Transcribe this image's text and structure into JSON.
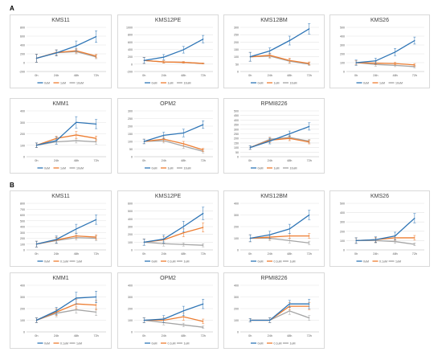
{
  "panel_labels": {
    "a": "A",
    "b": "B"
  },
  "colors": {
    "s1": "#2e75b6",
    "s2": "#ed7d31",
    "s3": "#a5a5a5"
  },
  "chart_data": [
    {
      "panel": "A",
      "type": "line",
      "title": "KMS11",
      "categories": [
        "0h",
        "24h",
        "48h",
        "72h"
      ],
      "ylim": [
        -200,
        800
      ],
      "yticks": [
        -200,
        0,
        200,
        400,
        600,
        800
      ],
      "series": [
        {
          "name": "0uM",
          "values": [
            100,
            220,
            380,
            590
          ],
          "err": [
            90,
            70,
            110,
            130
          ]
        },
        {
          "name": "1uM",
          "values": [
            100,
            230,
            270,
            150
          ],
          "err": [
            90,
            60,
            50,
            40
          ]
        },
        {
          "name": "10uM",
          "values": [
            100,
            225,
            250,
            130
          ],
          "err": [
            90,
            60,
            50,
            40
          ]
        }
      ]
    },
    {
      "panel": "A",
      "type": "line",
      "title": "KMS12PE",
      "categories": [
        "0h",
        "24h",
        "48h",
        "72h"
      ],
      "ylim": [
        -200,
        1000
      ],
      "yticks": [
        -200,
        0,
        200,
        400,
        600,
        800,
        1000
      ],
      "series": [
        {
          "name": "0uM",
          "values": [
            100,
            190,
            390,
            680
          ],
          "err": [
            80,
            70,
            90,
            100
          ]
        },
        {
          "name": "1uM",
          "values": [
            100,
            60,
            50,
            20
          ],
          "err": [
            80,
            30,
            20,
            10
          ]
        },
        {
          "name": "10uM",
          "values": [
            100,
            60,
            50,
            20
          ],
          "err": [
            80,
            30,
            20,
            10
          ]
        }
      ]
    },
    {
      "panel": "A",
      "type": "line",
      "title": "KMS12BM",
      "categories": [
        "0h",
        "24h",
        "48h",
        "72h"
      ],
      "ylim": [
        0,
        300
      ],
      "yticks": [
        0,
        50,
        100,
        150,
        200,
        250,
        300
      ],
      "series": [
        {
          "name": "0uM",
          "values": [
            100,
            140,
            210,
            290
          ],
          "err": [
            30,
            20,
            30,
            35
          ]
        },
        {
          "name": "1uM",
          "values": [
            100,
            110,
            75,
            55
          ],
          "err": [
            30,
            15,
            15,
            10
          ]
        },
        {
          "name": "10uM",
          "values": [
            100,
            105,
            70,
            50
          ],
          "err": [
            30,
            15,
            15,
            10
          ]
        }
      ]
    },
    {
      "panel": "A",
      "type": "line",
      "title": "KMS26",
      "categories": [
        "0h",
        "24h",
        "48h",
        "72h"
      ],
      "ylim": [
        0,
        500
      ],
      "yticks": [
        0,
        100,
        200,
        300,
        400,
        500
      ],
      "series": [
        {
          "name": "0uM",
          "values": [
            100,
            120,
            220,
            350
          ],
          "err": [
            30,
            30,
            40,
            40
          ]
        },
        {
          "name": "1uM",
          "values": [
            100,
            95,
            90,
            75
          ],
          "err": [
            20,
            20,
            15,
            15
          ]
        },
        {
          "name": "10uM",
          "values": [
            100,
            80,
            70,
            55
          ],
          "err": [
            20,
            20,
            15,
            15
          ]
        }
      ]
    },
    {
      "panel": "A",
      "type": "line",
      "title": "KMM1",
      "categories": [
        "0h",
        "24h",
        "48h",
        "72h"
      ],
      "ylim": [
        0,
        400
      ],
      "yticks": [
        0,
        100,
        200,
        300,
        400
      ],
      "series": [
        {
          "name": "0uM",
          "values": [
            100,
            140,
            300,
            285
          ],
          "err": [
            20,
            30,
            50,
            40
          ]
        },
        {
          "name": "1uM",
          "values": [
            100,
            160,
            190,
            160
          ],
          "err": [
            20,
            20,
            30,
            20
          ]
        },
        {
          "name": "10uM",
          "values": [
            100,
            130,
            140,
            130
          ],
          "err": [
            20,
            20,
            20,
            20
          ]
        }
      ]
    },
    {
      "panel": "A",
      "type": "line",
      "title": "OPM2",
      "categories": [
        "0h",
        "24h",
        "48h",
        "72h"
      ],
      "ylim": [
        0,
        300
      ],
      "yticks": [
        0,
        50,
        100,
        150,
        200,
        250,
        300
      ],
      "series": [
        {
          "name": "0uM",
          "values": [
            100,
            140,
            155,
            210
          ],
          "err": [
            15,
            20,
            25,
            25
          ]
        },
        {
          "name": "1uM",
          "values": [
            100,
            115,
            85,
            45
          ],
          "err": [
            15,
            15,
            15,
            10
          ]
        },
        {
          "name": "10uM",
          "values": [
            100,
            105,
            70,
            35
          ],
          "err": [
            15,
            15,
            15,
            10
          ]
        }
      ]
    },
    {
      "panel": "A",
      "type": "line",
      "title": "RPMI8226",
      "categories": [
        "0h",
        "24h",
        "48h",
        "72h"
      ],
      "ylim": [
        0,
        500
      ],
      "yticks": [
        0,
        50,
        100,
        150,
        200,
        250,
        300,
        350,
        400,
        450,
        500
      ],
      "series": [
        {
          "name": "0uM",
          "values": [
            100,
            170,
            250,
            330
          ],
          "err": [
            20,
            30,
            30,
            40
          ]
        },
        {
          "name": "1uM",
          "values": [
            100,
            180,
            200,
            160
          ],
          "err": [
            20,
            25,
            25,
            20
          ]
        },
        {
          "name": "10uM",
          "values": [
            100,
            190,
            210,
            170
          ],
          "err": [
            20,
            25,
            25,
            20
          ]
        }
      ]
    },
    {
      "panel": "B",
      "type": "line",
      "title": "KMS11",
      "categories": [
        "0h",
        "24h",
        "48h",
        "72h"
      ],
      "ylim": [
        0,
        800
      ],
      "yticks": [
        0,
        100,
        200,
        300,
        400,
        500,
        600,
        700,
        800
      ],
      "series": [
        {
          "name": "0uM",
          "values": [
            100,
            180,
            360,
            520
          ],
          "err": [
            50,
            60,
            80,
            80
          ]
        },
        {
          "name": "0.1uM",
          "values": [
            100,
            170,
            240,
            220
          ],
          "err": [
            50,
            50,
            40,
            40
          ]
        },
        {
          "name": "1uM",
          "values": [
            100,
            160,
            210,
            200
          ],
          "err": [
            50,
            50,
            40,
            40
          ]
        }
      ]
    },
    {
      "panel": "B",
      "type": "line",
      "title": "KMS12PE",
      "categories": [
        "0h",
        "24h",
        "48h",
        "72h"
      ],
      "ylim": [
        0,
        600
      ],
      "yticks": [
        0,
        100,
        200,
        300,
        400,
        500,
        600
      ],
      "series": [
        {
          "name": "0uM",
          "values": [
            100,
            140,
            300,
            470
          ],
          "err": [
            40,
            50,
            70,
            80
          ]
        },
        {
          "name": "0.1uM",
          "values": [
            100,
            130,
            220,
            290
          ],
          "err": [
            40,
            40,
            50,
            60
          ]
        },
        {
          "name": "1uM",
          "values": [
            100,
            80,
            70,
            60
          ],
          "err": [
            40,
            30,
            20,
            20
          ]
        }
      ]
    },
    {
      "panel": "B",
      "type": "line",
      "title": "KMS12BM",
      "categories": [
        "0h",
        "24h",
        "48h",
        "72h"
      ],
      "ylim": [
        0,
        400
      ],
      "yticks": [
        0,
        100,
        200,
        300,
        400
      ],
      "series": [
        {
          "name": "0uM",
          "values": [
            100,
            130,
            180,
            300
          ],
          "err": [
            30,
            30,
            40,
            40
          ]
        },
        {
          "name": "0.1uM",
          "values": [
            100,
            110,
            120,
            120
          ],
          "err": [
            30,
            20,
            20,
            20
          ]
        },
        {
          "name": "1uM",
          "values": [
            100,
            100,
            80,
            60
          ],
          "err": [
            30,
            20,
            20,
            15
          ]
        }
      ]
    },
    {
      "panel": "B",
      "type": "line",
      "title": "KMS26",
      "categories": [
        "0h",
        "24h",
        "48h",
        "72h"
      ],
      "ylim": [
        0,
        500
      ],
      "yticks": [
        0,
        100,
        200,
        300,
        400,
        500
      ],
      "series": [
        {
          "name": "0uM",
          "values": [
            100,
            110,
            150,
            340
          ],
          "err": [
            30,
            30,
            40,
            50
          ]
        },
        {
          "name": "0.1uM",
          "values": [
            100,
            110,
            130,
            130
          ],
          "err": [
            30,
            25,
            25,
            25
          ]
        },
        {
          "name": "1uM",
          "values": [
            100,
            100,
            90,
            60
          ],
          "err": [
            30,
            25,
            20,
            15
          ]
        }
      ]
    },
    {
      "panel": "B",
      "type": "line",
      "title": "KMM1",
      "categories": [
        "0h",
        "24h",
        "48h",
        "72h"
      ],
      "ylim": [
        0,
        400
      ],
      "yticks": [
        0,
        100,
        200,
        300,
        400
      ],
      "series": [
        {
          "name": "0uM",
          "values": [
            100,
            180,
            290,
            300
          ],
          "err": [
            20,
            30,
            50,
            50
          ]
        },
        {
          "name": "0.1uM",
          "values": [
            100,
            170,
            240,
            230
          ],
          "err": [
            20,
            30,
            40,
            40
          ]
        },
        {
          "name": "1uM",
          "values": [
            100,
            160,
            190,
            170
          ],
          "err": [
            20,
            30,
            30,
            30
          ]
        }
      ]
    },
    {
      "panel": "B",
      "type": "line",
      "title": "OPM2",
      "categories": [
        "0h",
        "24h",
        "48h",
        "72h"
      ],
      "ylim": [
        0,
        400
      ],
      "yticks": [
        0,
        100,
        200,
        300,
        400
      ],
      "series": [
        {
          "name": "0uM",
          "values": [
            100,
            110,
            180,
            240
          ],
          "err": [
            20,
            30,
            40,
            40
          ]
        },
        {
          "name": "0.1uM",
          "values": [
            100,
            100,
            130,
            90
          ],
          "err": [
            20,
            20,
            30,
            20
          ]
        },
        {
          "name": "1uM",
          "values": [
            100,
            80,
            60,
            40
          ],
          "err": [
            20,
            20,
            15,
            10
          ]
        }
      ]
    },
    {
      "panel": "B",
      "type": "line",
      "title": "RPMI8226",
      "categories": [
        "0h",
        "24h",
        "48h",
        "72h"
      ],
      "ylim": [
        0,
        400
      ],
      "yticks": [
        0,
        100,
        200,
        300,
        400
      ],
      "series": [
        {
          "name": "0uM",
          "values": [
            100,
            100,
            240,
            240
          ],
          "err": [
            15,
            20,
            30,
            40
          ]
        },
        {
          "name": "0.1uM",
          "values": [
            100,
            100,
            220,
            220
          ],
          "err": [
            15,
            20,
            30,
            30
          ]
        },
        {
          "name": "1uM",
          "values": [
            100,
            100,
            180,
            120
          ],
          "err": [
            15,
            20,
            30,
            20
          ]
        }
      ]
    }
  ]
}
